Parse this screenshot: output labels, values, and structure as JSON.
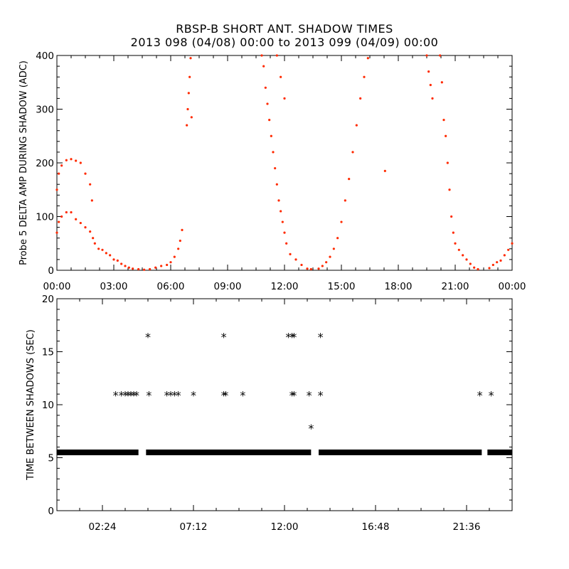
{
  "title": "RBSP-B SHORT ANT. SHADOW TIMES",
  "subtitle": "2013 098 (04/08) 00:00 to 2013 099 (04/09) 00:00",
  "chart_data": [
    {
      "type": "scatter",
      "ylabel": "Probe 5 DELTA AMP DURING SHADOW (ADC)",
      "xlabel": "",
      "x_unit": "hours",
      "xlim": [
        0,
        24
      ],
      "ylim": [
        0,
        400
      ],
      "xticks": [
        0,
        3,
        6,
        9,
        12,
        15,
        18,
        21,
        24
      ],
      "xtick_labels": [
        "00:00",
        "03:00",
        "06:00",
        "09:00",
        "12:00",
        "15:00",
        "18:00",
        "21:00",
        "00:00"
      ],
      "yticks": [
        0,
        100,
        200,
        300,
        400
      ],
      "ytick_labels": [
        "0",
        "100",
        "200",
        "300",
        "400"
      ],
      "marker": "dot",
      "color": "#ff2a00",
      "series": [
        {
          "points": [
            [
              0.0,
              150
            ],
            [
              0.1,
              180
            ],
            [
              0.25,
              195
            ],
            [
              0.5,
              205
            ],
            [
              0.75,
              207
            ],
            [
              1.0,
              204
            ],
            [
              1.25,
              200
            ],
            [
              1.5,
              180
            ],
            [
              1.75,
              160
            ],
            [
              1.85,
              130
            ],
            [
              0.0,
              70
            ],
            [
              0.1,
              90
            ],
            [
              0.25,
              100
            ],
            [
              0.5,
              108
            ],
            [
              0.75,
              108
            ],
            [
              1.0,
              95
            ],
            [
              1.25,
              88
            ],
            [
              1.5,
              80
            ],
            [
              1.75,
              72
            ],
            [
              1.9,
              60
            ],
            [
              2.0,
              50
            ],
            [
              2.2,
              40
            ],
            [
              2.4,
              38
            ],
            [
              2.6,
              32
            ],
            [
              2.8,
              28
            ],
            [
              3.0,
              20
            ],
            [
              3.2,
              18
            ],
            [
              3.4,
              12
            ],
            [
              3.6,
              8
            ],
            [
              3.8,
              5
            ],
            [
              4.0,
              3
            ],
            [
              4.3,
              2
            ],
            [
              4.6,
              1
            ],
            [
              4.9,
              2
            ],
            [
              5.2,
              5
            ],
            [
              5.5,
              8
            ],
            [
              5.8,
              10
            ],
            [
              6.0,
              15
            ],
            [
              6.2,
              25
            ],
            [
              6.4,
              40
            ],
            [
              6.5,
              55
            ],
            [
              6.6,
              75
            ],
            [
              6.85,
              270
            ],
            [
              6.9,
              300
            ],
            [
              6.95,
              330
            ],
            [
              7.0,
              360
            ],
            [
              7.05,
              395
            ],
            [
              7.1,
              285
            ],
            [
              10.8,
              400
            ],
            [
              10.9,
              380
            ],
            [
              11.0,
              340
            ],
            [
              11.1,
              310
            ],
            [
              11.2,
              280
            ],
            [
              11.3,
              250
            ],
            [
              11.4,
              220
            ],
            [
              11.5,
              190
            ],
            [
              11.6,
              160
            ],
            [
              11.7,
              130
            ],
            [
              11.8,
              110
            ],
            [
              11.9,
              90
            ],
            [
              12.0,
              70
            ],
            [
              12.1,
              50
            ],
            [
              12.3,
              30
            ],
            [
              12.6,
              20
            ],
            [
              12.9,
              10
            ],
            [
              13.2,
              3
            ],
            [
              13.4,
              2
            ],
            [
              11.6,
              400
            ],
            [
              11.8,
              360
            ],
            [
              12.0,
              320
            ],
            [
              13.8,
              3
            ],
            [
              14.0,
              8
            ],
            [
              14.2,
              15
            ],
            [
              14.4,
              25
            ],
            [
              14.6,
              40
            ],
            [
              14.8,
              60
            ],
            [
              15.0,
              90
            ],
            [
              15.2,
              130
            ],
            [
              15.4,
              170
            ],
            [
              15.6,
              220
            ],
            [
              15.8,
              270
            ],
            [
              16.0,
              320
            ],
            [
              16.2,
              360
            ],
            [
              16.4,
              395
            ],
            [
              17.3,
              185
            ],
            [
              19.5,
              400
            ],
            [
              19.6,
              370
            ],
            [
              19.7,
              345
            ],
            [
              19.8,
              320
            ],
            [
              20.2,
              400
            ],
            [
              20.3,
              350
            ],
            [
              20.4,
              280
            ],
            [
              20.5,
              250
            ],
            [
              20.6,
              200
            ],
            [
              20.7,
              150
            ],
            [
              20.8,
              100
            ],
            [
              20.9,
              70
            ],
            [
              21.0,
              50
            ],
            [
              21.2,
              38
            ],
            [
              21.4,
              28
            ],
            [
              21.6,
              20
            ],
            [
              21.8,
              12
            ],
            [
              22.0,
              5
            ],
            [
              22.2,
              2
            ],
            [
              22.8,
              4
            ],
            [
              23.0,
              10
            ],
            [
              23.2,
              15
            ],
            [
              23.4,
              18
            ],
            [
              23.6,
              28
            ],
            [
              23.8,
              38
            ],
            [
              24.0,
              50
            ]
          ]
        }
      ]
    },
    {
      "type": "scatter",
      "ylabel": "TIME BETWEEN SHADOWS (SEC)",
      "xlabel": "",
      "x_unit": "hours",
      "xlim": [
        0,
        24
      ],
      "ylim": [
        0,
        20
      ],
      "xticks": [
        2.4,
        7.2,
        12.0,
        16.8,
        21.6
      ],
      "xtick_labels": [
        "02:24",
        "07:12",
        "12:00",
        "16:48",
        "21:36"
      ],
      "yticks": [
        0,
        5,
        10,
        15,
        20
      ],
      "ytick_labels": [
        "0",
        "5",
        "10",
        "15",
        "20"
      ],
      "marker": "asterisk",
      "color": "#000000",
      "baseline": {
        "y": 5.5,
        "segments": [
          [
            0,
            4.3
          ],
          [
            4.7,
            13.4
          ],
          [
            13.8,
            22.4
          ],
          [
            22.7,
            24
          ]
        ]
      },
      "series": [
        {
          "points": [
            [
              3.1,
              10.9
            ],
            [
              3.4,
              10.9
            ],
            [
              3.6,
              10.9
            ],
            [
              3.75,
              10.9
            ],
            [
              3.9,
              10.9
            ],
            [
              4.05,
              10.9
            ],
            [
              4.2,
              10.9
            ],
            [
              4.8,
              16.4
            ],
            [
              4.85,
              10.9
            ],
            [
              5.8,
              10.9
            ],
            [
              6.0,
              10.9
            ],
            [
              6.2,
              10.9
            ],
            [
              6.4,
              10.9
            ],
            [
              7.2,
              10.9
            ],
            [
              8.8,
              16.4
            ],
            [
              8.8,
              10.9
            ],
            [
              8.9,
              10.9
            ],
            [
              9.8,
              10.9
            ],
            [
              12.2,
              16.4
            ],
            [
              12.4,
              16.4
            ],
            [
              12.5,
              16.4
            ],
            [
              12.4,
              10.9
            ],
            [
              12.5,
              10.9
            ],
            [
              13.3,
              10.9
            ],
            [
              13.4,
              7.8
            ],
            [
              13.9,
              16.4
            ],
            [
              13.9,
              10.9
            ],
            [
              22.3,
              10.9
            ],
            [
              22.9,
              10.9
            ]
          ]
        }
      ]
    }
  ]
}
